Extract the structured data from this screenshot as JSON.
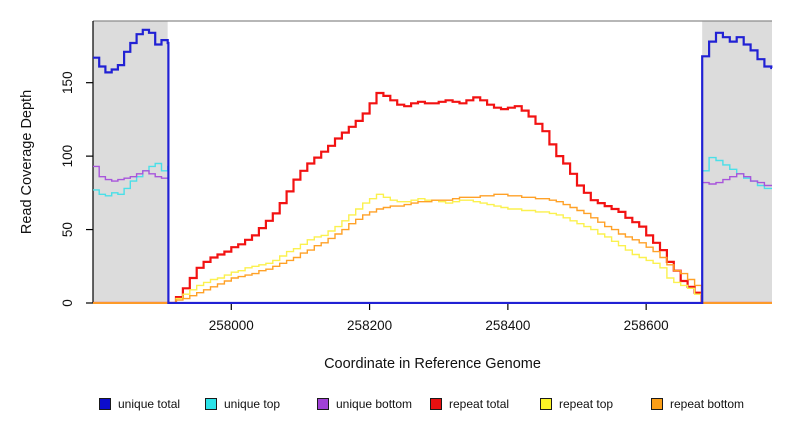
{
  "chart_data": {
    "type": "line",
    "title": "",
    "xlabel": "Coordinate in Reference Genome",
    "ylabel": "Read Coverage Depth",
    "xlim": [
      257800,
      258782
    ],
    "ylim": [
      0,
      192
    ],
    "x_ticks": [
      258000,
      258200,
      258400,
      258600
    ],
    "y_ticks": [
      0,
      50,
      100,
      150
    ],
    "grid": false,
    "legend_position": "bottom",
    "shaded_regions": {
      "color": "#DCDCDC",
      "regions": [
        [
          257800,
          257908
        ],
        [
          258681,
          258782
        ]
      ]
    },
    "series": [
      {
        "name": "repeat total",
        "color": "#F21212",
        "width": 2.2,
        "segments": [
          {
            "x0": 257800,
            "dx": 108,
            "values": [
              0,
              0
            ]
          },
          {
            "x0": 257910,
            "dx": 10,
            "values": [
              0,
              4,
              10,
              17,
              24,
              28,
              31,
              33,
              35,
              38,
              40,
              43,
              46,
              51,
              56,
              61,
              68,
              76,
              84,
              90,
              95,
              99,
              103,
              107,
              112,
              116,
              120,
              124,
              129,
              136,
              143,
              141,
              138,
              135,
              134,
              136,
              137,
              136,
              136,
              137,
              138,
              137,
              136,
              138,
              140,
              138,
              135,
              133,
              132,
              133,
              134,
              131,
              127,
              122,
              117,
              108,
              100,
              95,
              88,
              80,
              75,
              70,
              68,
              66,
              64,
              62,
              58,
              55,
              52,
              46,
              41,
              36,
              28,
              22,
              15,
              11,
              7,
              0
            ]
          },
          {
            "x0": 258682,
            "dx": 100,
            "values": [
              0,
              0
            ]
          }
        ]
      },
      {
        "name": "repeat top",
        "color": "#FBF14E",
        "width": 1.4,
        "segments": [
          {
            "x0": 257800,
            "dx": 108,
            "values": [
              0,
              0
            ]
          },
          {
            "x0": 257910,
            "dx": 10,
            "values": [
              0,
              3,
              6,
              9,
              12,
              14,
              16,
              17,
              19,
              21,
              22,
              24,
              25,
              26,
              27,
              29,
              32,
              35,
              37,
              40,
              43,
              45,
              46,
              49,
              52,
              56,
              60,
              64,
              68,
              71,
              74,
              72,
              70,
              69,
              69,
              70,
              71,
              70,
              70,
              69,
              68,
              69,
              70,
              70,
              69,
              68,
              67,
              66,
              65,
              64,
              64,
              63,
              63,
              62,
              62,
              61,
              60,
              58,
              56,
              54,
              52,
              50,
              47,
              45,
              42,
              39,
              36,
              33,
              31,
              29,
              27,
              24,
              17,
              14,
              12,
              10,
              6,
              0
            ]
          },
          {
            "x0": 258682,
            "dx": 100,
            "values": [
              0,
              0
            ]
          }
        ]
      },
      {
        "name": "repeat bottom",
        "color": "#FFA127",
        "width": 1.4,
        "segments": [
          {
            "x0": 257800,
            "dx": 108,
            "values": [
              0,
              0
            ]
          },
          {
            "x0": 257910,
            "dx": 10,
            "values": [
              0,
              2,
              3,
              5,
              7,
              9,
              11,
              13,
              15,
              17,
              18,
              19,
              20,
              22,
              23,
              25,
              27,
              29,
              31,
              34,
              36,
              39,
              41,
              44,
              47,
              50,
              54,
              57,
              60,
              62,
              64,
              65,
              66,
              66,
              67,
              68,
              69,
              69,
              70,
              70,
              70,
              71,
              72,
              72,
              72,
              73,
              73,
              74,
              74,
              73,
              73,
              72,
              72,
              71,
              71,
              70,
              69,
              67,
              65,
              63,
              61,
              58,
              55,
              52,
              50,
              47,
              45,
              43,
              41,
              38,
              35,
              31,
              26,
              22,
              20,
              16,
              12,
              0
            ]
          },
          {
            "x0": 258682,
            "dx": 100,
            "values": [
              0,
              0
            ]
          }
        ]
      },
      {
        "name": "unique top",
        "color": "#4ADFE8",
        "width": 1.4,
        "segments": [
          {
            "x0": 257800,
            "dx": 9,
            "values": [
              77,
              74,
              73,
              75,
              74,
              78,
              83,
              86,
              90,
              93,
              95,
              90,
              93
            ]
          },
          {
            "x0": 257909,
            "dx": 771,
            "values": [
              0,
              0
            ]
          },
          {
            "x0": 258681,
            "dx": 10,
            "values": [
              90,
              99,
              97,
              94,
              91,
              88,
              85,
              83,
              80,
              78,
              78
            ]
          }
        ]
      },
      {
        "name": "unique bottom",
        "color": "#A855DB",
        "width": 1.4,
        "segments": [
          {
            "x0": 257800,
            "dx": 9,
            "values": [
              93,
              86,
              84,
              83,
              84,
              85,
              86,
              88,
              90,
              88,
              86,
              85,
              85
            ]
          },
          {
            "x0": 257909,
            "dx": 771,
            "values": [
              0,
              0
            ]
          },
          {
            "x0": 258681,
            "dx": 10,
            "values": [
              82,
              81,
              82,
              84,
              86,
              88,
              86,
              83,
              82,
              80,
              80
            ]
          }
        ]
      },
      {
        "name": "unique total",
        "color": "#2121D4",
        "width": 2.2,
        "segments": [
          {
            "x0": 257800,
            "dx": 9,
            "values": [
              167,
              161,
              157,
              159,
              162,
              171,
              177,
              183,
              186,
              184,
              176,
              179,
              177
            ]
          },
          {
            "x0": 257909,
            "dx": 771,
            "values": [
              0,
              0
            ]
          },
          {
            "x0": 258681,
            "dx": 10,
            "values": [
              168,
              178,
              184,
              181,
              178,
              181,
              176,
              172,
              166,
              161,
              160
            ]
          }
        ]
      }
    ]
  },
  "legend": {
    "items": [
      {
        "label": "unique total",
        "color": "#0D0DCC"
      },
      {
        "label": "unique top",
        "color": "#2BE2E8"
      },
      {
        "label": "unique bottom",
        "color": "#A041D6"
      },
      {
        "label": "repeat total",
        "color": "#E81010"
      },
      {
        "label": "repeat top",
        "color": "#FBF326"
      },
      {
        "label": "repeat bottom",
        "color": "#FB9E17"
      }
    ]
  }
}
